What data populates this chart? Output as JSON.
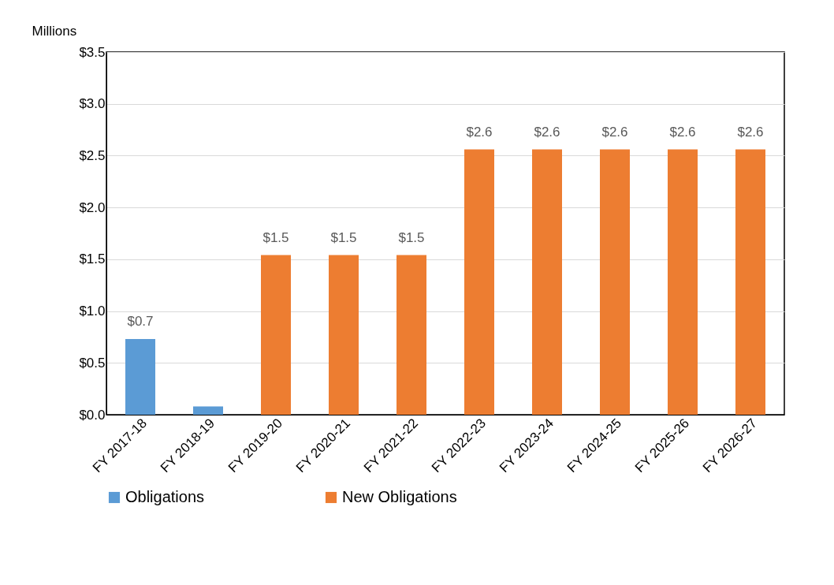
{
  "chart_data": {
    "type": "bar",
    "ylabel": "Millions",
    "categories": [
      "FY 2017-18",
      "FY 2018-19",
      "FY 2019-20",
      "FY 2020-21",
      "FY 2021-22",
      "FY 2022-23",
      "FY 2023-24",
      "FY 2024-25",
      "FY 2025-26",
      "FY 2026-27"
    ],
    "series": [
      {
        "name": "Obligations",
        "color": "#5b9bd5",
        "values": [
          0.73,
          0.08,
          null,
          null,
          null,
          null,
          null,
          null,
          null,
          null
        ],
        "value_labels": [
          "$0.7",
          null,
          null,
          null,
          null,
          null,
          null,
          null,
          null,
          null
        ]
      },
      {
        "name": "New Obligations",
        "color": "#ed7d31",
        "values": [
          null,
          null,
          1.54,
          1.54,
          1.54,
          2.56,
          2.56,
          2.56,
          2.56,
          2.56
        ],
        "value_labels": [
          null,
          null,
          "$1.5",
          "$1.5",
          "$1.5",
          "$2.6",
          "$2.6",
          "$2.6",
          "$2.6",
          "$2.6"
        ]
      }
    ],
    "ylim": [
      0,
      3.5
    ],
    "yticks": [
      {
        "value": 0,
        "label": "$0.0"
      },
      {
        "value": 0.5,
        "label": "$0.5"
      },
      {
        "value": 1,
        "label": "$1.0"
      },
      {
        "value": 1.5,
        "label": "$1.5"
      },
      {
        "value": 2,
        "label": "$2.0"
      },
      {
        "value": 2.5,
        "label": "$2.5"
      },
      {
        "value": 3,
        "label": "$3.0"
      },
      {
        "value": 3.5,
        "label": "$3.5"
      }
    ],
    "grid": "y",
    "legend": "bottom"
  }
}
